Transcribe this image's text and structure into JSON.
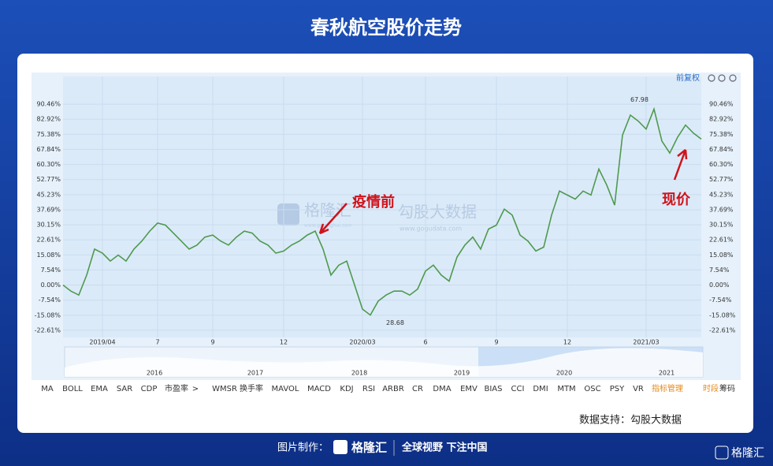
{
  "header": {
    "title": "春秋航空股价走势"
  },
  "chart_data": {
    "type": "line",
    "adjust_label": "前复权",
    "color": "#4e9a4e",
    "grid": true,
    "categories": [
      null,
      null,
      null,
      null,
      null,
      "2019/04",
      null,
      null,
      null,
      null,
      null,
      null,
      "7",
      null,
      null,
      null,
      null,
      null,
      null,
      "9",
      null,
      null,
      null,
      null,
      null,
      null,
      null,
      null,
      "12",
      null,
      null,
      null,
      null,
      null,
      null,
      null,
      null,
      null,
      "2020/03",
      null,
      null,
      null,
      null,
      null,
      null,
      null,
      "6",
      null,
      null,
      null,
      null,
      null,
      null,
      null,
      null,
      "9",
      null,
      null,
      null,
      null,
      null,
      null,
      null,
      null,
      "12",
      null,
      null,
      null,
      null,
      null,
      null,
      null,
      null,
      null,
      "2021/03",
      null,
      null,
      null,
      null,
      null,
      null,
      null
    ],
    "values": [
      0,
      -3,
      -5,
      5,
      18,
      16,
      12,
      15,
      12,
      18,
      22,
      27,
      31,
      30,
      26,
      22,
      18,
      20,
      24,
      25,
      22,
      20,
      24,
      27,
      26,
      22,
      20,
      16,
      17,
      20,
      22,
      25,
      27,
      18,
      5,
      10,
      12,
      0,
      -12,
      -15,
      -8,
      -5,
      -3,
      -3,
      -5,
      -2,
      7,
      10,
      5,
      2,
      14,
      20,
      24,
      18,
      28,
      30,
      38,
      35,
      25,
      22,
      17,
      19,
      35,
      47,
      45,
      43,
      47,
      45,
      58,
      50,
      40,
      75,
      85,
      82,
      78,
      88,
      72,
      66,
      74,
      80,
      76,
      73
    ],
    "ylim": [
      -26.2,
      104.3
    ],
    "yticks": [
      {
        "value": 90.46,
        "label": "90.46%"
      },
      {
        "value": 82.92,
        "label": "82.92%"
      },
      {
        "value": 75.38,
        "label": "75.38%"
      },
      {
        "value": 67.84,
        "label": "67.84%"
      },
      {
        "value": 60.3,
        "label": "60.30%"
      },
      {
        "value": 52.77,
        "label": "52.77%"
      },
      {
        "value": 45.23,
        "label": "45.23%"
      },
      {
        "value": 37.69,
        "label": "37.69%"
      },
      {
        "value": 30.15,
        "label": "30.15%"
      },
      {
        "value": 22.61,
        "label": "22.61%"
      },
      {
        "value": 15.08,
        "label": "15.08%"
      },
      {
        "value": 7.54,
        "label": "7.54%"
      },
      {
        "value": 0,
        "label": "0.00%"
      },
      {
        "value": -7.54,
        "label": "-7.54%"
      },
      {
        "value": -15.08,
        "label": "-15.08%"
      },
      {
        "value": -22.61,
        "label": "-22.61%"
      }
    ],
    "annotations": [
      "67.98",
      "28.68",
      "疫情前",
      "现价"
    ]
  },
  "navigator": {
    "years": [
      "2016",
      "2017",
      "2018",
      "2019",
      "2020",
      "2021"
    ]
  },
  "indicators": [
    "MA",
    "BOLL",
    "EMA",
    "SAR",
    "CDP",
    "市盈率",
    ">",
    "WMSR",
    "换手率",
    "MAVOL",
    "MACD",
    "KDJ",
    "RSI",
    "ARBR",
    "CR",
    "DMA",
    "EMV",
    "BIAS",
    "CCI",
    "DMI",
    "MTM",
    "OSC",
    "PSY",
    "VR",
    "指标管理",
    "时段",
    "筹码"
  ],
  "watermark": {
    "brand": "格隆汇",
    "brand_url": "www.gelonghui.com",
    "data": "勾股大数据",
    "data_url": "www.gogudata.com"
  },
  "source": "数据支持：勾股大数据",
  "footer": {
    "made_by": "图片制作：",
    "brand": "格隆汇",
    "slogan": "全球视野 下注中国",
    "corner": "格隆汇"
  }
}
